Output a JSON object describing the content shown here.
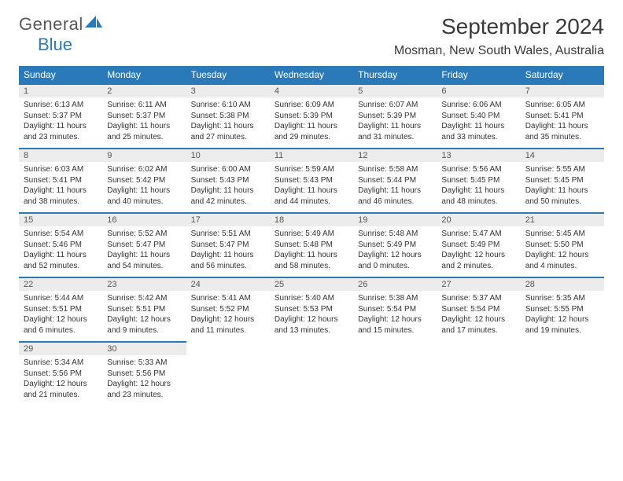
{
  "brand": {
    "part1": "General",
    "part2": "Blue"
  },
  "title": "September 2024",
  "location": "Mosman, New South Wales, Australia",
  "colors": {
    "header_bg": "#2a7ab9",
    "header_text": "#ffffff",
    "daynum_bg": "#ececec",
    "daynum_border": "#2a7ab9",
    "body_text": "#333333",
    "page_bg": "#ffffff"
  },
  "typography": {
    "title_fontsize": 28,
    "location_fontsize": 16,
    "dayheader_fontsize": 12,
    "daynum_fontsize": 11,
    "body_fontsize": 10
  },
  "day_headers": [
    "Sunday",
    "Monday",
    "Tuesday",
    "Wednesday",
    "Thursday",
    "Friday",
    "Saturday"
  ],
  "weeks": [
    [
      {
        "n": "1",
        "sr": "Sunrise: 6:13 AM",
        "ss": "Sunset: 5:37 PM",
        "d1": "Daylight: 11 hours",
        "d2": "and 23 minutes."
      },
      {
        "n": "2",
        "sr": "Sunrise: 6:11 AM",
        "ss": "Sunset: 5:37 PM",
        "d1": "Daylight: 11 hours",
        "d2": "and 25 minutes."
      },
      {
        "n": "3",
        "sr": "Sunrise: 6:10 AM",
        "ss": "Sunset: 5:38 PM",
        "d1": "Daylight: 11 hours",
        "d2": "and 27 minutes."
      },
      {
        "n": "4",
        "sr": "Sunrise: 6:09 AM",
        "ss": "Sunset: 5:39 PM",
        "d1": "Daylight: 11 hours",
        "d2": "and 29 minutes."
      },
      {
        "n": "5",
        "sr": "Sunrise: 6:07 AM",
        "ss": "Sunset: 5:39 PM",
        "d1": "Daylight: 11 hours",
        "d2": "and 31 minutes."
      },
      {
        "n": "6",
        "sr": "Sunrise: 6:06 AM",
        "ss": "Sunset: 5:40 PM",
        "d1": "Daylight: 11 hours",
        "d2": "and 33 minutes."
      },
      {
        "n": "7",
        "sr": "Sunrise: 6:05 AM",
        "ss": "Sunset: 5:41 PM",
        "d1": "Daylight: 11 hours",
        "d2": "and 35 minutes."
      }
    ],
    [
      {
        "n": "8",
        "sr": "Sunrise: 6:03 AM",
        "ss": "Sunset: 5:41 PM",
        "d1": "Daylight: 11 hours",
        "d2": "and 38 minutes."
      },
      {
        "n": "9",
        "sr": "Sunrise: 6:02 AM",
        "ss": "Sunset: 5:42 PM",
        "d1": "Daylight: 11 hours",
        "d2": "and 40 minutes."
      },
      {
        "n": "10",
        "sr": "Sunrise: 6:00 AM",
        "ss": "Sunset: 5:43 PM",
        "d1": "Daylight: 11 hours",
        "d2": "and 42 minutes."
      },
      {
        "n": "11",
        "sr": "Sunrise: 5:59 AM",
        "ss": "Sunset: 5:43 PM",
        "d1": "Daylight: 11 hours",
        "d2": "and 44 minutes."
      },
      {
        "n": "12",
        "sr": "Sunrise: 5:58 AM",
        "ss": "Sunset: 5:44 PM",
        "d1": "Daylight: 11 hours",
        "d2": "and 46 minutes."
      },
      {
        "n": "13",
        "sr": "Sunrise: 5:56 AM",
        "ss": "Sunset: 5:45 PM",
        "d1": "Daylight: 11 hours",
        "d2": "and 48 minutes."
      },
      {
        "n": "14",
        "sr": "Sunrise: 5:55 AM",
        "ss": "Sunset: 5:45 PM",
        "d1": "Daylight: 11 hours",
        "d2": "and 50 minutes."
      }
    ],
    [
      {
        "n": "15",
        "sr": "Sunrise: 5:54 AM",
        "ss": "Sunset: 5:46 PM",
        "d1": "Daylight: 11 hours",
        "d2": "and 52 minutes."
      },
      {
        "n": "16",
        "sr": "Sunrise: 5:52 AM",
        "ss": "Sunset: 5:47 PM",
        "d1": "Daylight: 11 hours",
        "d2": "and 54 minutes."
      },
      {
        "n": "17",
        "sr": "Sunrise: 5:51 AM",
        "ss": "Sunset: 5:47 PM",
        "d1": "Daylight: 11 hours",
        "d2": "and 56 minutes."
      },
      {
        "n": "18",
        "sr": "Sunrise: 5:49 AM",
        "ss": "Sunset: 5:48 PM",
        "d1": "Daylight: 11 hours",
        "d2": "and 58 minutes."
      },
      {
        "n": "19",
        "sr": "Sunrise: 5:48 AM",
        "ss": "Sunset: 5:49 PM",
        "d1": "Daylight: 12 hours",
        "d2": "and 0 minutes."
      },
      {
        "n": "20",
        "sr": "Sunrise: 5:47 AM",
        "ss": "Sunset: 5:49 PM",
        "d1": "Daylight: 12 hours",
        "d2": "and 2 minutes."
      },
      {
        "n": "21",
        "sr": "Sunrise: 5:45 AM",
        "ss": "Sunset: 5:50 PM",
        "d1": "Daylight: 12 hours",
        "d2": "and 4 minutes."
      }
    ],
    [
      {
        "n": "22",
        "sr": "Sunrise: 5:44 AM",
        "ss": "Sunset: 5:51 PM",
        "d1": "Daylight: 12 hours",
        "d2": "and 6 minutes."
      },
      {
        "n": "23",
        "sr": "Sunrise: 5:42 AM",
        "ss": "Sunset: 5:51 PM",
        "d1": "Daylight: 12 hours",
        "d2": "and 9 minutes."
      },
      {
        "n": "24",
        "sr": "Sunrise: 5:41 AM",
        "ss": "Sunset: 5:52 PM",
        "d1": "Daylight: 12 hours",
        "d2": "and 11 minutes."
      },
      {
        "n": "25",
        "sr": "Sunrise: 5:40 AM",
        "ss": "Sunset: 5:53 PM",
        "d1": "Daylight: 12 hours",
        "d2": "and 13 minutes."
      },
      {
        "n": "26",
        "sr": "Sunrise: 5:38 AM",
        "ss": "Sunset: 5:54 PM",
        "d1": "Daylight: 12 hours",
        "d2": "and 15 minutes."
      },
      {
        "n": "27",
        "sr": "Sunrise: 5:37 AM",
        "ss": "Sunset: 5:54 PM",
        "d1": "Daylight: 12 hours",
        "d2": "and 17 minutes."
      },
      {
        "n": "28",
        "sr": "Sunrise: 5:35 AM",
        "ss": "Sunset: 5:55 PM",
        "d1": "Daylight: 12 hours",
        "d2": "and 19 minutes."
      }
    ],
    [
      {
        "n": "29",
        "sr": "Sunrise: 5:34 AM",
        "ss": "Sunset: 5:56 PM",
        "d1": "Daylight: 12 hours",
        "d2": "and 21 minutes."
      },
      {
        "n": "30",
        "sr": "Sunrise: 5:33 AM",
        "ss": "Sunset: 5:56 PM",
        "d1": "Daylight: 12 hours",
        "d2": "and 23 minutes."
      },
      null,
      null,
      null,
      null,
      null
    ]
  ]
}
